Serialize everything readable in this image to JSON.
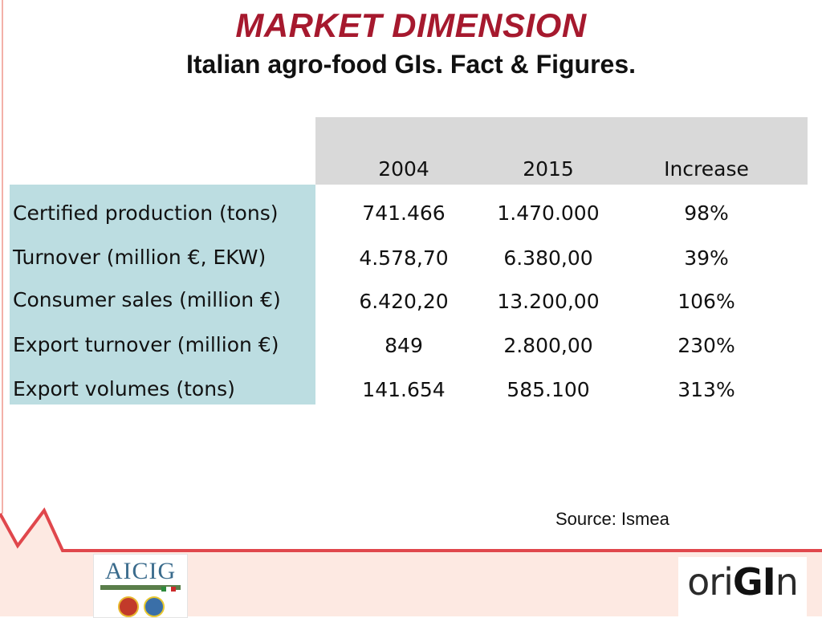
{
  "title": "MARKET DIMENSION",
  "subtitle": "Italian agro-food GIs. Fact & Figures.",
  "table": {
    "headers": [
      "2004",
      "2015",
      "Increase"
    ],
    "rows": [
      {
        "label": "Certified production (tons)",
        "v2004": "741.466",
        "v2015": "1.470.000",
        "increase": "98%"
      },
      {
        "label": "Turnover (million €, EKW)",
        "v2004": "4.578,70",
        "v2015": "6.380,00",
        "increase": "39%"
      },
      {
        "label": "Consumer sales (million €)",
        "v2004": "6.420,20",
        "v2015": "13.200,00",
        "increase": "106%"
      },
      {
        "label": "Export turnover (million €)",
        "v2004": "849",
        "v2015": "2.800,00",
        "increase": "230%"
      },
      {
        "label": "Export volumes (tons)",
        "v2004": "141.654",
        "v2015": "585.100",
        "increase": "313%"
      }
    ]
  },
  "source": "Source: Ismea",
  "logos": {
    "left": {
      "name": "AICIG"
    },
    "right": {
      "name_prefix": "ori",
      "name_highlight": "GI",
      "name_suffix": "n"
    }
  },
  "colors": {
    "title": "#a6192e",
    "header_band": "#d9d9d9",
    "label_band": "#bcdde1",
    "decor_line": "#e0474c"
  }
}
